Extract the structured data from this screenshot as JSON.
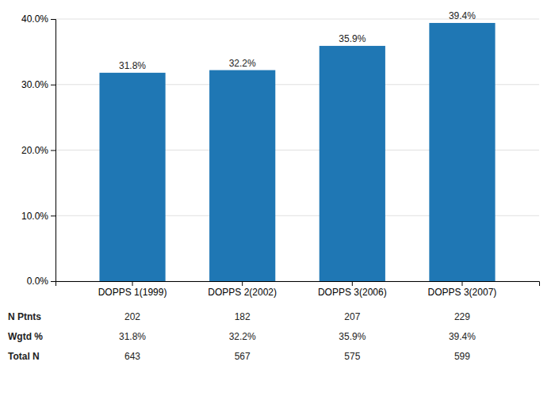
{
  "chart_data": {
    "type": "bar",
    "categories": [
      "DOPPS 1(1999)",
      "DOPPS 2(2002)",
      "DOPPS 3(2006)",
      "DOPPS 3(2007)"
    ],
    "values": [
      31.8,
      32.2,
      35.9,
      39.4
    ],
    "value_labels": [
      "31.8%",
      "32.2%",
      "35.9%",
      "39.4%"
    ],
    "data_labels": true,
    "ylim": [
      0,
      40
    ],
    "yticks": [
      {
        "value": 0,
        "label": "0.0%"
      },
      {
        "value": 10,
        "label": "10.0%"
      },
      {
        "value": 20,
        "label": "20.0%"
      },
      {
        "value": 30,
        "label": "30.0%"
      },
      {
        "value": 40,
        "label": "40.0%"
      }
    ],
    "grid": true,
    "table_row_labels": [
      "N Ptnts",
      "Wgtd %",
      "Total N"
    ],
    "table_data": [
      [
        "202",
        "182",
        "207",
        "229"
      ],
      [
        "31.8%",
        "32.2%",
        "35.9%",
        "39.4%"
      ],
      [
        "643",
        "567",
        "575",
        "599"
      ]
    ]
  }
}
